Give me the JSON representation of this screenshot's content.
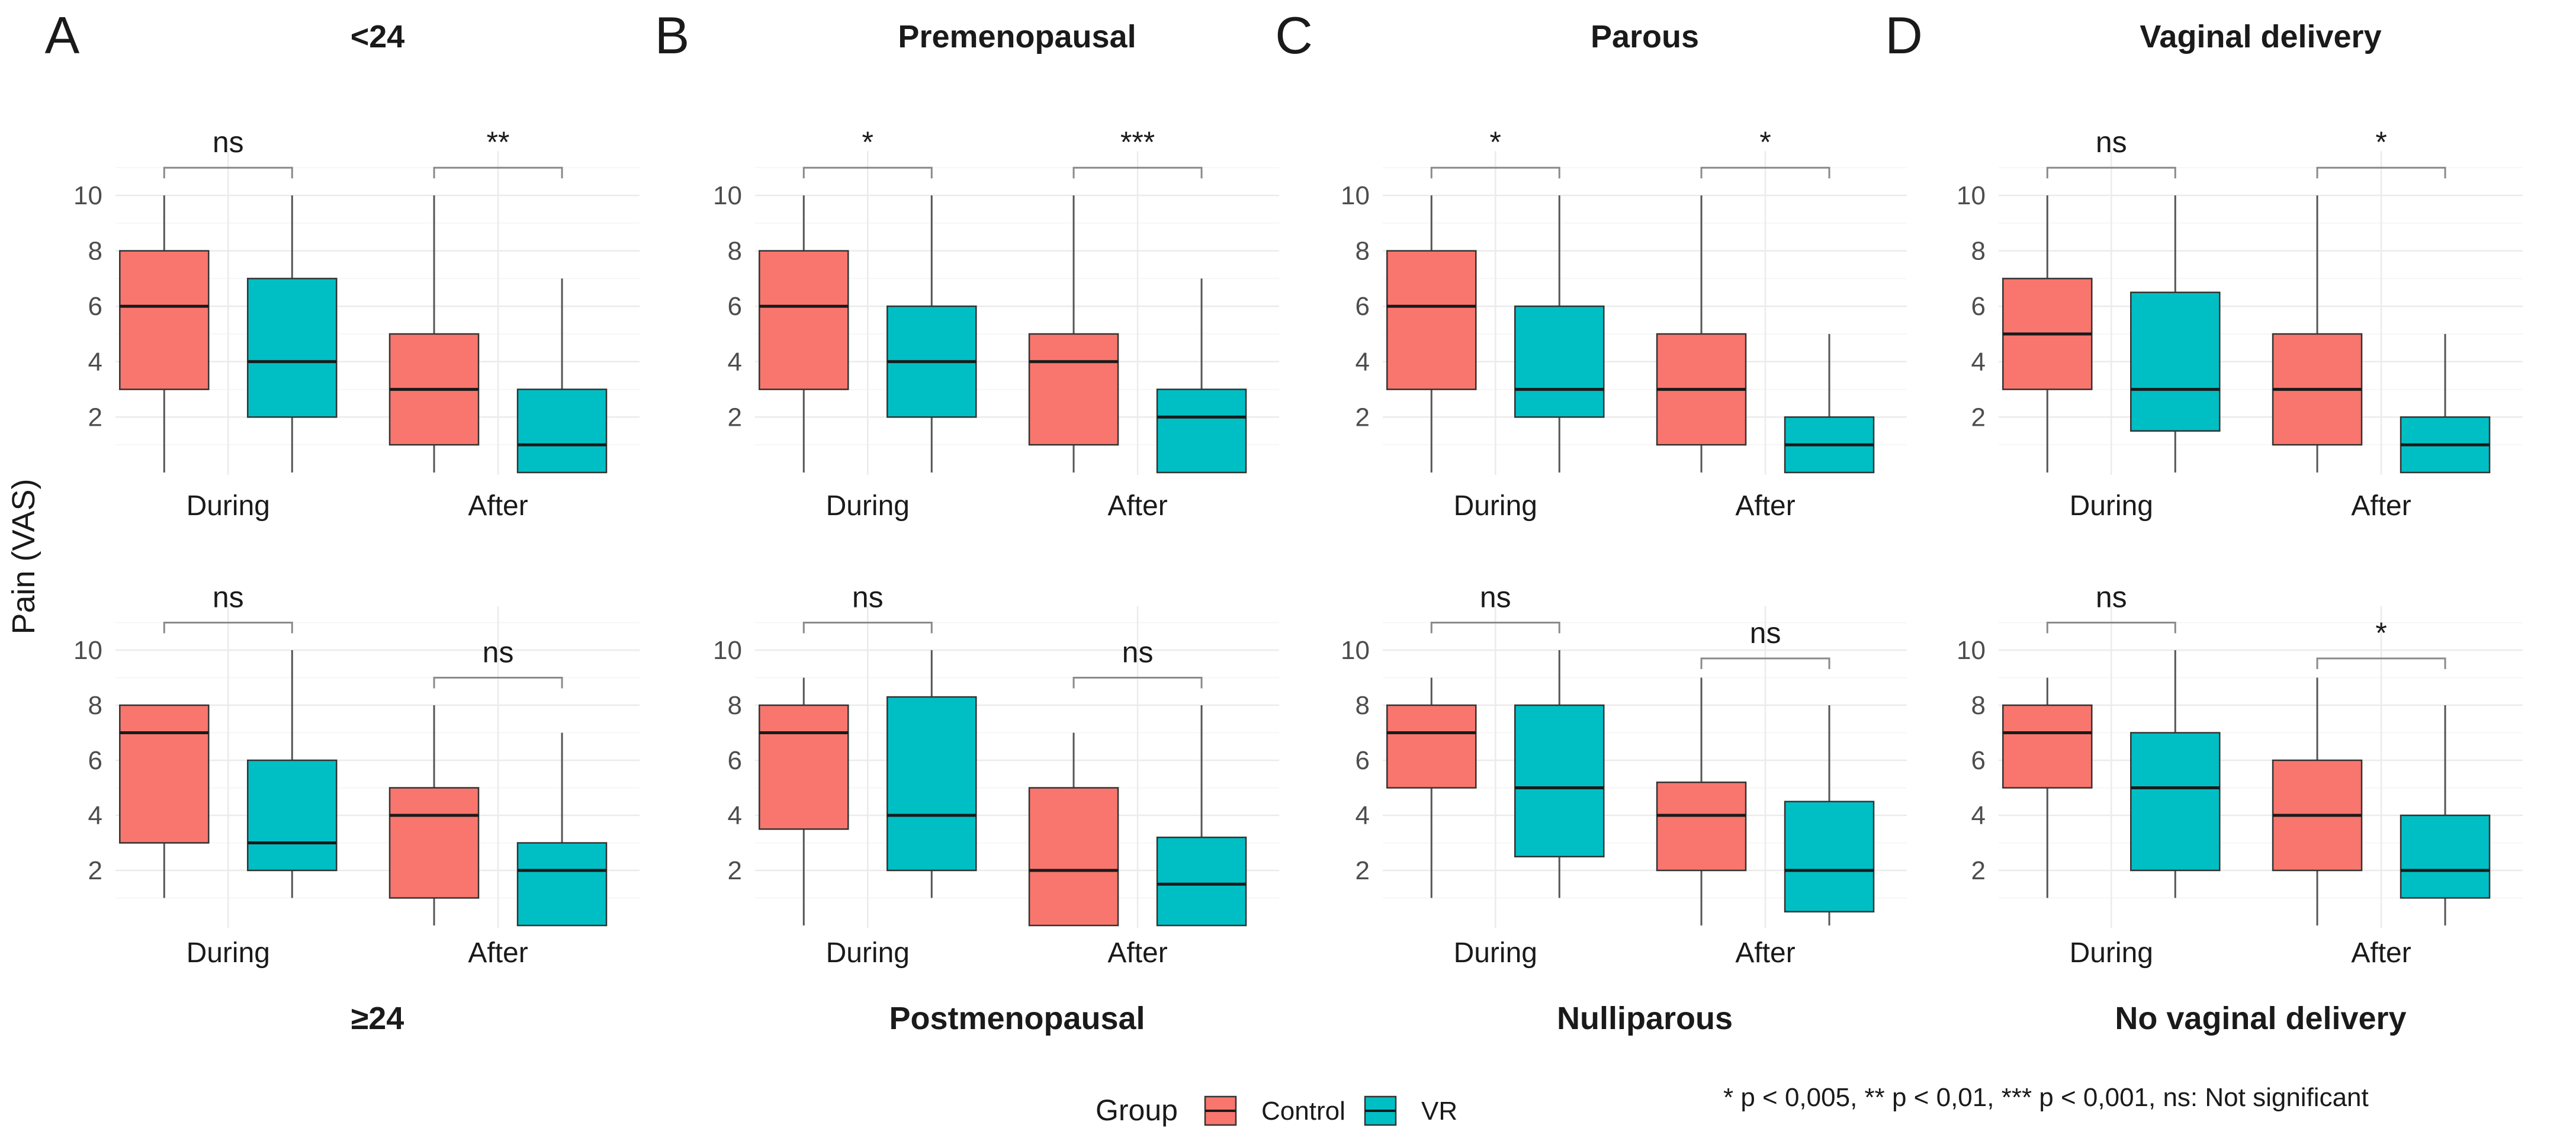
{
  "y_axis_title": "Pain (VAS)",
  "legend": {
    "title": "Group",
    "items": [
      {
        "label": "Control",
        "color": "#F8766D"
      },
      {
        "label": "VR",
        "color": "#00BFC4"
      }
    ]
  },
  "footnote": "* p < 0,005, ** p < 0,01, *** p < 0,001, ns: Not significant",
  "panel_letters": [
    "A",
    "B",
    "C",
    "D"
  ],
  "chart_data": [
    {
      "type": "boxplot",
      "panel": "A",
      "row": "top",
      "title": "<24",
      "ylabel": "Pain (VAS)",
      "ylim": [
        0,
        10
      ],
      "yticks": [
        2,
        4,
        6,
        8,
        10
      ],
      "categories": [
        "During",
        "After"
      ],
      "series": [
        "Control",
        "VR"
      ],
      "boxes": [
        {
          "category": "During",
          "group": "Control",
          "min": 0,
          "q1": 3,
          "median": 6,
          "q3": 8,
          "max": 10
        },
        {
          "category": "During",
          "group": "VR",
          "min": 0,
          "q1": 2,
          "median": 4,
          "q3": 7,
          "max": 10
        },
        {
          "category": "After",
          "group": "Control",
          "min": 0,
          "q1": 1,
          "median": 3,
          "q3": 5,
          "max": 10
        },
        {
          "category": "After",
          "group": "VR",
          "min": 0,
          "q1": 0,
          "median": 1,
          "q3": 3,
          "max": 7
        }
      ],
      "significance": [
        {
          "category": "During",
          "label": "ns",
          "level": 11
        },
        {
          "category": "After",
          "label": "**",
          "level": 11
        }
      ]
    },
    {
      "type": "boxplot",
      "panel": "A",
      "row": "bottom",
      "title": "≥24",
      "ylabel": "Pain (VAS)",
      "ylim": [
        0,
        10
      ],
      "yticks": [
        2,
        4,
        6,
        8,
        10
      ],
      "categories": [
        "During",
        "After"
      ],
      "series": [
        "Control",
        "VR"
      ],
      "boxes": [
        {
          "category": "During",
          "group": "Control",
          "min": 1,
          "q1": 3,
          "median": 7,
          "q3": 8,
          "max": 8
        },
        {
          "category": "During",
          "group": "VR",
          "min": 1,
          "q1": 2,
          "median": 3,
          "q3": 6,
          "max": 10
        },
        {
          "category": "After",
          "group": "Control",
          "min": 0,
          "q1": 1,
          "median": 4,
          "q3": 5,
          "max": 8
        },
        {
          "category": "After",
          "group": "VR",
          "min": 0,
          "q1": 0,
          "median": 2,
          "q3": 3,
          "max": 7
        }
      ],
      "significance": [
        {
          "category": "During",
          "label": "ns",
          "level": 11
        },
        {
          "category": "After",
          "label": "ns",
          "level": 9
        }
      ]
    },
    {
      "type": "boxplot",
      "panel": "B",
      "row": "top",
      "title": "Premenopausal",
      "ylabel": "Pain (VAS)",
      "ylim": [
        0,
        10
      ],
      "yticks": [
        2,
        4,
        6,
        8,
        10
      ],
      "categories": [
        "During",
        "After"
      ],
      "series": [
        "Control",
        "VR"
      ],
      "boxes": [
        {
          "category": "During",
          "group": "Control",
          "min": 0,
          "q1": 3,
          "median": 6,
          "q3": 8,
          "max": 10
        },
        {
          "category": "During",
          "group": "VR",
          "min": 0,
          "q1": 2,
          "median": 4,
          "q3": 6,
          "max": 10
        },
        {
          "category": "After",
          "group": "Control",
          "min": 0,
          "q1": 1,
          "median": 4,
          "q3": 5,
          "max": 10
        },
        {
          "category": "After",
          "group": "VR",
          "min": 0,
          "q1": 0,
          "median": 2,
          "q3": 3,
          "max": 7
        }
      ],
      "significance": [
        {
          "category": "During",
          "label": "*",
          "level": 11
        },
        {
          "category": "After",
          "label": "***",
          "level": 11
        }
      ]
    },
    {
      "type": "boxplot",
      "panel": "B",
      "row": "bottom",
      "title": "Postmenopausal",
      "ylabel": "Pain (VAS)",
      "ylim": [
        0,
        10
      ],
      "yticks": [
        2,
        4,
        6,
        8,
        10
      ],
      "categories": [
        "During",
        "After"
      ],
      "series": [
        "Control",
        "VR"
      ],
      "boxes": [
        {
          "category": "During",
          "group": "Control",
          "min": 0,
          "q1": 3.5,
          "median": 7,
          "q3": 8,
          "max": 9
        },
        {
          "category": "During",
          "group": "VR",
          "min": 1,
          "q1": 2,
          "median": 4,
          "q3": 8.3,
          "max": 10
        },
        {
          "category": "After",
          "group": "Control",
          "min": 0,
          "q1": 0,
          "median": 2,
          "q3": 5,
          "max": 7
        },
        {
          "category": "After",
          "group": "VR",
          "min": 0,
          "q1": 0,
          "median": 1.5,
          "q3": 3.2,
          "max": 8
        }
      ],
      "significance": [
        {
          "category": "During",
          "label": "ns",
          "level": 11
        },
        {
          "category": "After",
          "label": "ns",
          "level": 9
        }
      ]
    },
    {
      "type": "boxplot",
      "panel": "C",
      "row": "top",
      "title": "Parous",
      "ylabel": "Pain (VAS)",
      "ylim": [
        0,
        10
      ],
      "yticks": [
        2,
        4,
        6,
        8,
        10
      ],
      "categories": [
        "During",
        "After"
      ],
      "series": [
        "Control",
        "VR"
      ],
      "boxes": [
        {
          "category": "During",
          "group": "Control",
          "min": 0,
          "q1": 3,
          "median": 6,
          "q3": 8,
          "max": 10
        },
        {
          "category": "During",
          "group": "VR",
          "min": 0,
          "q1": 2,
          "median": 3,
          "q3": 6,
          "max": 10
        },
        {
          "category": "After",
          "group": "Control",
          "min": 0,
          "q1": 1,
          "median": 3,
          "q3": 5,
          "max": 10
        },
        {
          "category": "After",
          "group": "VR",
          "min": 0,
          "q1": 0,
          "median": 1,
          "q3": 2,
          "max": 5
        }
      ],
      "significance": [
        {
          "category": "During",
          "label": "*",
          "level": 11
        },
        {
          "category": "After",
          "label": "*",
          "level": 11
        }
      ]
    },
    {
      "type": "boxplot",
      "panel": "C",
      "row": "bottom",
      "title": "Nulliparous",
      "ylabel": "Pain (VAS)",
      "ylim": [
        0,
        10
      ],
      "yticks": [
        2,
        4,
        6,
        8,
        10
      ],
      "categories": [
        "During",
        "After"
      ],
      "series": [
        "Control",
        "VR"
      ],
      "boxes": [
        {
          "category": "During",
          "group": "Control",
          "min": 1,
          "q1": 5,
          "median": 7,
          "q3": 8,
          "max": 9
        },
        {
          "category": "During",
          "group": "VR",
          "min": 1,
          "q1": 2.5,
          "median": 5,
          "q3": 8,
          "max": 10
        },
        {
          "category": "After",
          "group": "Control",
          "min": 0,
          "q1": 2,
          "median": 4,
          "q3": 5.2,
          "max": 9
        },
        {
          "category": "After",
          "group": "VR",
          "min": 0,
          "q1": 0.5,
          "median": 2,
          "q3": 4.5,
          "max": 8
        }
      ],
      "significance": [
        {
          "category": "During",
          "label": "ns",
          "level": 11
        },
        {
          "category": "After",
          "label": "ns",
          "level": 9.7
        }
      ]
    },
    {
      "type": "boxplot",
      "panel": "D",
      "row": "top",
      "title": "Vaginal delivery",
      "ylabel": "Pain (VAS)",
      "ylim": [
        0,
        10
      ],
      "yticks": [
        2,
        4,
        6,
        8,
        10
      ],
      "categories": [
        "During",
        "After"
      ],
      "series": [
        "Control",
        "VR"
      ],
      "boxes": [
        {
          "category": "During",
          "group": "Control",
          "min": 0,
          "q1": 3,
          "median": 5,
          "q3": 7,
          "max": 10
        },
        {
          "category": "During",
          "group": "VR",
          "min": 0,
          "q1": 1.5,
          "median": 3,
          "q3": 6.5,
          "max": 10
        },
        {
          "category": "After",
          "group": "Control",
          "min": 0,
          "q1": 1,
          "median": 3,
          "q3": 5,
          "max": 10
        },
        {
          "category": "After",
          "group": "VR",
          "min": 0,
          "q1": 0,
          "median": 1,
          "q3": 2,
          "max": 5
        }
      ],
      "significance": [
        {
          "category": "During",
          "label": "ns",
          "level": 11
        },
        {
          "category": "After",
          "label": "*",
          "level": 11
        }
      ]
    },
    {
      "type": "boxplot",
      "panel": "D",
      "row": "bottom",
      "title": "No vaginal delivery",
      "ylabel": "Pain (VAS)",
      "ylim": [
        0,
        10
      ],
      "yticks": [
        2,
        4,
        6,
        8,
        10
      ],
      "categories": [
        "During",
        "After"
      ],
      "series": [
        "Control",
        "VR"
      ],
      "boxes": [
        {
          "category": "During",
          "group": "Control",
          "min": 1,
          "q1": 5,
          "median": 7,
          "q3": 8,
          "max": 9
        },
        {
          "category": "During",
          "group": "VR",
          "min": 1,
          "q1": 2,
          "median": 5,
          "q3": 7,
          "max": 10
        },
        {
          "category": "After",
          "group": "Control",
          "min": 0,
          "q1": 2,
          "median": 4,
          "q3": 6,
          "max": 9
        },
        {
          "category": "After",
          "group": "VR",
          "min": 0,
          "q1": 1,
          "median": 2,
          "q3": 4,
          "max": 8
        }
      ],
      "significance": [
        {
          "category": "During",
          "label": "ns",
          "level": 11
        },
        {
          "category": "After",
          "label": "*",
          "level": 9.7
        }
      ]
    }
  ]
}
